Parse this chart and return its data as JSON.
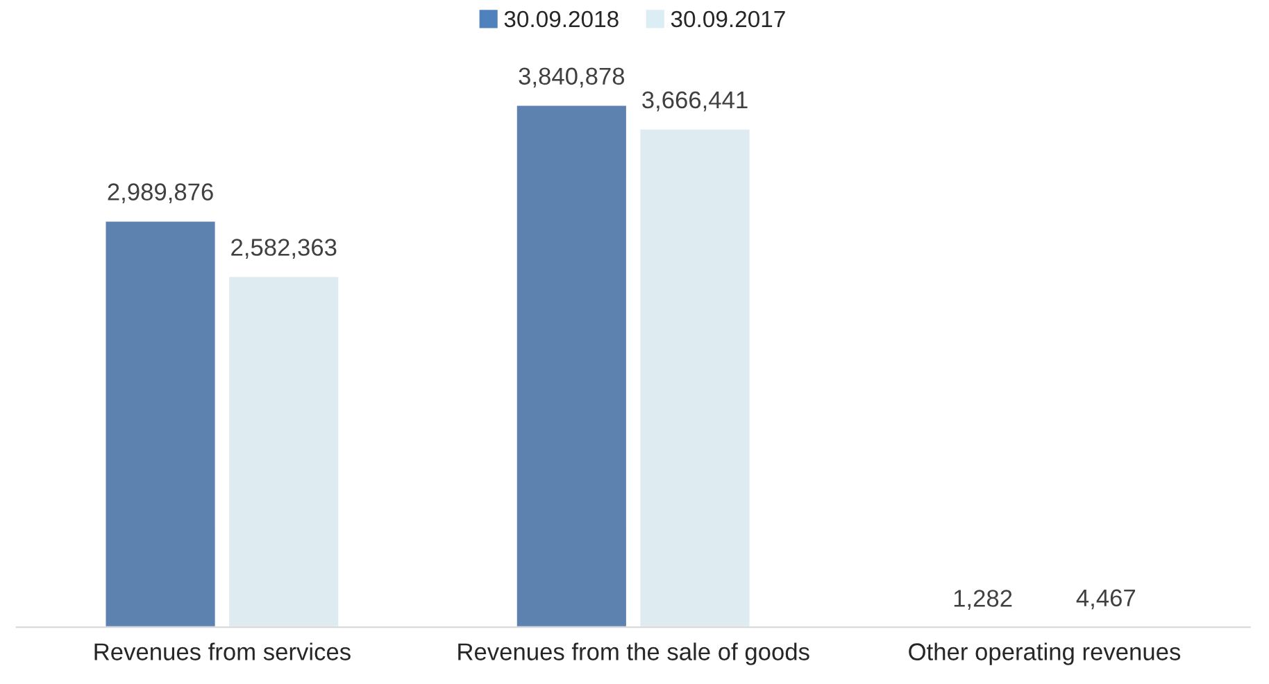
{
  "chart_data": {
    "type": "bar",
    "categories": [
      "Revenues from services",
      "Revenues from the sale of goods",
      "Other operating revenues"
    ],
    "series": [
      {
        "name": "30.09.2018",
        "color": "#4f81bd",
        "values": [
          2989876,
          3840878,
          1282
        ],
        "value_labels": [
          "2,989,876",
          "3,840,878",
          "1,282"
        ]
      },
      {
        "name": "30.09.2017",
        "color": "#dbeef4",
        "values": [
          2582363,
          3666441,
          4467
        ],
        "value_labels": [
          "2,582,363",
          "3,666,441",
          "4,467"
        ]
      }
    ],
    "legend": "top",
    "grid": false
  }
}
